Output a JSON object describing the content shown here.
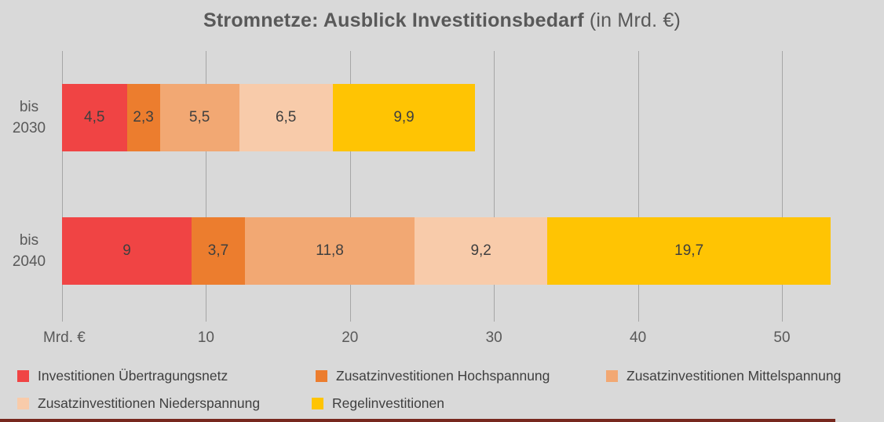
{
  "title": {
    "main": "Stromnetze: Ausblick Investitionsbedarf",
    "suffix": " (in Mrd. €)"
  },
  "x_axis": {
    "unit_label": "Mrd. €",
    "tick_labels": [
      "10",
      "20",
      "30",
      "40",
      "50"
    ]
  },
  "chart_data": {
    "type": "bar",
    "orientation": "horizontal",
    "stacked": true,
    "title": "Stromnetze: Ausblick Investitionsbedarf (in Mrd. €)",
    "xlabel": "Mrd. €",
    "categories": [
      "bis 2030",
      "bis 2040"
    ],
    "category_display": [
      "bis\n2030",
      "bis\n2040"
    ],
    "x_ticks": [
      0,
      10,
      20,
      30,
      40,
      50
    ],
    "xlim": [
      0,
      55
    ],
    "grid": true,
    "legend_position": "bottom",
    "series": [
      {
        "name": "Investitionen Übertragungsnetz",
        "color": "#f04444",
        "values": [
          4.5,
          9.0
        ],
        "labels": [
          "4,5",
          "9"
        ]
      },
      {
        "name": "Zusatzinvestitionen Hochspannung",
        "color": "#ec7d2e",
        "values": [
          2.3,
          3.7
        ],
        "labels": [
          "2,3",
          "3,7"
        ]
      },
      {
        "name": "Zusatzinvestitionen Mittelspannung",
        "color": "#f2a873",
        "values": [
          5.5,
          11.8
        ],
        "labels": [
          "5,5",
          "11,8"
        ]
      },
      {
        "name": "Zusatzinvestitionen Niederspannung",
        "color": "#f8cbaa",
        "values": [
          6.5,
          9.2
        ],
        "labels": [
          "6,5",
          "9,2"
        ]
      },
      {
        "name": "Regelinvestitionen",
        "color": "#ffc403",
        "values": [
          9.9,
          19.7
        ],
        "labels": [
          "9,9",
          "19,7"
        ]
      }
    ],
    "totals": [
      28.7,
      53.4
    ]
  },
  "colors": {
    "background": "#d9d9d9",
    "gridline": "#a6a6a6",
    "title_text": "#595959",
    "axis_text": "#595959",
    "data_label_text": "#3f3f3f",
    "footer_bar": "#77281e"
  }
}
